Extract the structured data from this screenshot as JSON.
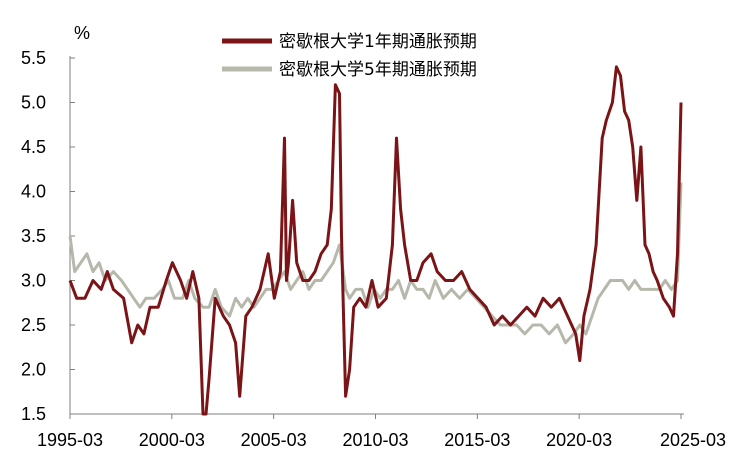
{
  "chart_data": {
    "type": "line",
    "ylabel": "%",
    "ylim": [
      1.5,
      5.5
    ],
    "yticks": [
      1.5,
      2.0,
      2.5,
      3.0,
      3.5,
      4.0,
      4.5,
      5.0,
      5.5
    ],
    "ytick_labels": [
      "1.5",
      "2.0",
      "2.5",
      "3.0",
      "3.5",
      "4.0",
      "4.5",
      "5.0",
      "5.5"
    ],
    "xlim": [
      1995.17,
      2025.17
    ],
    "xticks": [
      1995.17,
      2000.17,
      2005.17,
      2010.17,
      2015.17,
      2020.17,
      2025.17
    ],
    "xtick_labels": [
      "1995-03",
      "2000-03",
      "2005-03",
      "2010-03",
      "2015-03",
      "2020-03",
      "2025-03"
    ],
    "grid": false,
    "legend": "top-center",
    "series": [
      {
        "name": "密歇根大学1年期通胀预期",
        "color": "#7b1416",
        "x": [
          1995.17,
          1995.5,
          1995.9,
          1996.3,
          1996.7,
          1997.0,
          1997.3,
          1997.8,
          1998.2,
          1998.5,
          1998.8,
          1999.1,
          1999.5,
          1999.9,
          2000.2,
          2000.6,
          2000.9,
          2001.2,
          2001.5,
          2001.7,
          2001.85,
          2002.0,
          2002.3,
          2002.7,
          2003.0,
          2003.3,
          2003.5,
          2003.8,
          2004.1,
          2004.5,
          2004.9,
          2005.2,
          2005.5,
          2005.7,
          2005.8,
          2005.9,
          2006.1,
          2006.3,
          2006.6,
          2006.9,
          2007.2,
          2007.5,
          2007.8,
          2008.0,
          2008.2,
          2008.4,
          2008.5,
          2008.7,
          2008.9,
          2009.1,
          2009.4,
          2009.7,
          2010.0,
          2010.3,
          2010.7,
          2011.0,
          2011.2,
          2011.4,
          2011.6,
          2011.9,
          2012.2,
          2012.5,
          2012.9,
          2013.2,
          2013.6,
          2014.0,
          2014.4,
          2014.8,
          2015.2,
          2015.6,
          2016.0,
          2016.4,
          2016.8,
          2017.2,
          2017.6,
          2018.0,
          2018.4,
          2018.8,
          2019.2,
          2019.6,
          2020.0,
          2020.2,
          2020.4,
          2020.7,
          2021.0,
          2021.3,
          2021.5,
          2021.8,
          2022.0,
          2022.2,
          2022.4,
          2022.6,
          2022.8,
          2023.0,
          2023.2,
          2023.4,
          2023.6,
          2023.8,
          2024.0,
          2024.3,
          2024.6,
          2024.8,
          2025.0,
          2025.17
        ],
        "values": [
          3.0,
          2.8,
          2.8,
          3.0,
          2.9,
          3.1,
          2.9,
          2.8,
          2.3,
          2.5,
          2.4,
          2.7,
          2.7,
          3.0,
          3.2,
          3.0,
          2.8,
          3.1,
          2.8,
          1.5,
          1.5,
          1.9,
          2.8,
          2.6,
          2.5,
          2.3,
          1.7,
          2.6,
          2.7,
          2.9,
          3.3,
          2.8,
          3.1,
          4.6,
          3.0,
          3.2,
          3.9,
          3.2,
          3.0,
          3.0,
          3.1,
          3.3,
          3.4,
          3.8,
          5.2,
          5.1,
          3.5,
          1.7,
          2.0,
          2.7,
          2.8,
          2.7,
          3.0,
          2.7,
          2.8,
          3.4,
          4.6,
          3.8,
          3.4,
          3.0,
          3.0,
          3.2,
          3.3,
          3.1,
          3.0,
          3.0,
          3.1,
          2.9,
          2.8,
          2.7,
          2.5,
          2.6,
          2.5,
          2.6,
          2.7,
          2.6,
          2.8,
          2.7,
          2.8,
          2.6,
          2.4,
          2.1,
          2.6,
          2.9,
          3.4,
          4.6,
          4.8,
          5.0,
          5.4,
          5.3,
          4.9,
          4.8,
          4.5,
          3.9,
          4.5,
          3.4,
          3.3,
          3.1,
          3.0,
          2.8,
          2.7,
          2.6,
          3.3,
          5.0
        ]
      },
      {
        "name": "密歇根大学5年期通胀预期",
        "color": "#b7b8ac",
        "x": [
          1995.17,
          1995.4,
          1995.7,
          1996.0,
          1996.3,
          1996.6,
          1996.9,
          1997.3,
          1997.7,
          1998.0,
          1998.3,
          1998.6,
          1998.9,
          1999.3,
          1999.7,
          2000.0,
          2000.3,
          2000.7,
          2001.0,
          2001.3,
          2001.7,
          2002.0,
          2002.3,
          2002.6,
          2003.0,
          2003.3,
          2003.6,
          2003.9,
          2004.2,
          2004.5,
          2004.8,
          2005.1,
          2005.4,
          2005.7,
          2006.0,
          2006.3,
          2006.6,
          2006.9,
          2007.2,
          2007.5,
          2007.8,
          2008.1,
          2008.4,
          2008.7,
          2008.9,
          2009.2,
          2009.5,
          2009.8,
          2010.1,
          2010.4,
          2010.7,
          2011.0,
          2011.3,
          2011.6,
          2011.9,
          2012.2,
          2012.5,
          2012.8,
          2013.1,
          2013.5,
          2013.9,
          2014.3,
          2014.7,
          2015.1,
          2015.5,
          2015.9,
          2016.3,
          2016.7,
          2017.1,
          2017.5,
          2017.9,
          2018.3,
          2018.7,
          2019.1,
          2019.5,
          2019.9,
          2020.2,
          2020.5,
          2020.8,
          2021.1,
          2021.4,
          2021.7,
          2022.0,
          2022.3,
          2022.6,
          2022.9,
          2023.2,
          2023.5,
          2023.8,
          2024.1,
          2024.4,
          2024.7,
          2025.0,
          2025.17
        ],
        "values": [
          3.5,
          3.1,
          3.2,
          3.3,
          3.1,
          3.2,
          3.0,
          3.1,
          3.0,
          2.9,
          2.8,
          2.7,
          2.8,
          2.8,
          2.9,
          3.0,
          2.8,
          2.8,
          3.0,
          2.8,
          2.7,
          2.7,
          2.9,
          2.7,
          2.6,
          2.8,
          2.7,
          2.8,
          2.7,
          2.8,
          2.9,
          2.9,
          3.0,
          3.1,
          2.9,
          3.0,
          3.1,
          2.9,
          3.0,
          3.0,
          3.1,
          3.2,
          3.4,
          2.9,
          2.8,
          2.9,
          2.9,
          2.7,
          2.9,
          2.8,
          2.9,
          2.9,
          3.0,
          2.8,
          3.0,
          2.9,
          2.9,
          2.8,
          3.0,
          2.8,
          2.9,
          2.8,
          2.9,
          2.8,
          2.7,
          2.6,
          2.5,
          2.5,
          2.5,
          2.4,
          2.5,
          2.5,
          2.4,
          2.5,
          2.3,
          2.4,
          2.5,
          2.4,
          2.6,
          2.8,
          2.9,
          3.0,
          3.0,
          3.0,
          2.9,
          3.0,
          2.9,
          2.9,
          2.9,
          2.9,
          3.0,
          2.9,
          3.0,
          4.1
        ]
      }
    ]
  }
}
